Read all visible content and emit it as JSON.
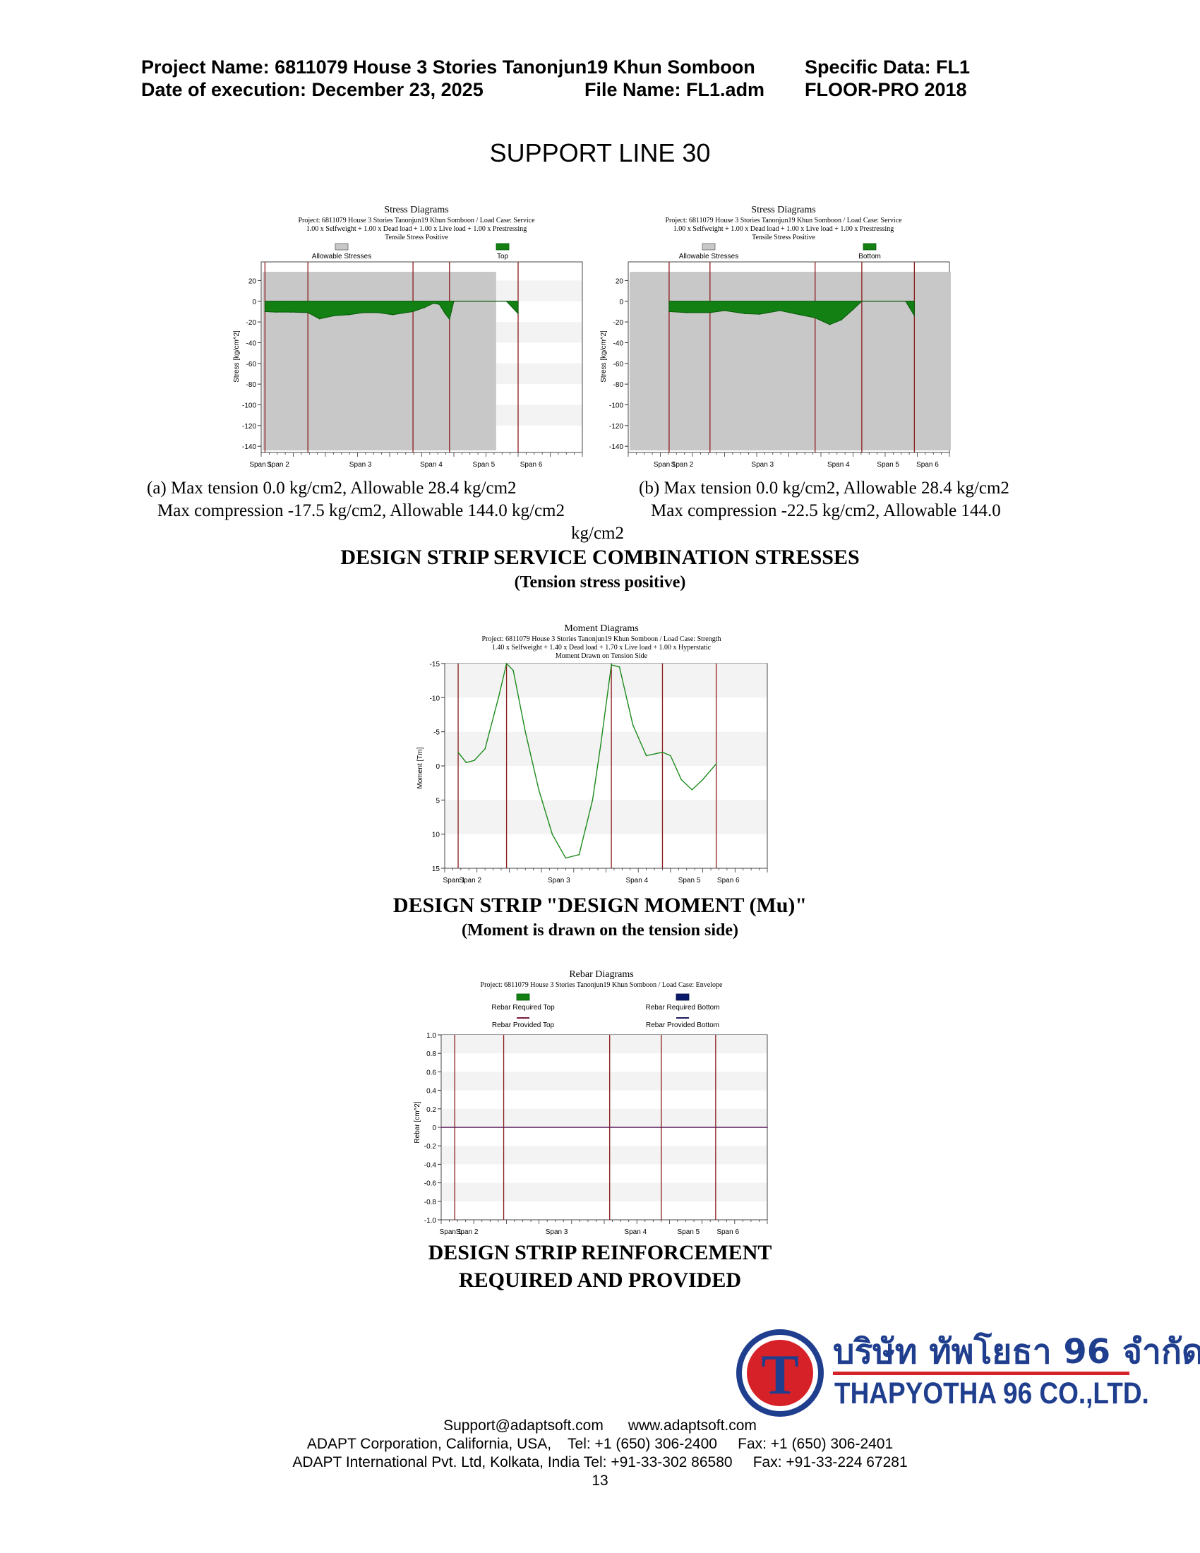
{
  "header": {
    "project": "Project Name: 6811079 House 3 Stories Tanonjun19 Khun Somboon",
    "specific": "Specific Data: FL1",
    "date": "Date of execution: December 23, 2025",
    "file": "File Name: FL1.adm",
    "software": "FLOOR-PRO 2018"
  },
  "page_title": "SUPPORT LINE 30",
  "stress_section": {
    "caption_a_line1": "(a) Max tension 0.0 kg/cm2, Allowable 28.4 kg/cm2",
    "caption_a_line2": "Max compression -17.5 kg/cm2, Allowable 144.0 kg/cm2",
    "caption_b_line1": "(b) Max tension 0.0 kg/cm2, Allowable 28.4 kg/cm2",
    "caption_b_line2": "Max compression -22.5 kg/cm2, Allowable 144.0",
    "caption_wrap": "kg/cm2",
    "heading": "DESIGN STRIP SERVICE COMBINATION STRESSES",
    "subheading": "(Tension stress positive)"
  },
  "moment_section": {
    "heading": "DESIGN STRIP \"DESIGN MOMENT (Mu)\"",
    "subheading": "(Moment is drawn on the tension side)"
  },
  "rebar_section": {
    "heading_line1": "DESIGN STRIP REINFORCEMENT",
    "heading_line2": "REQUIRED AND PROVIDED"
  },
  "chart_data": [
    {
      "type": "area",
      "title": "Stress Diagrams",
      "subtitle_1": "Project: 6811079 House 3 Stories Tanonjun19 Khun Somboon / Load Case: Service",
      "subtitle_2": "1.00 x Selfweight +  1.00 x Dead load +  1.00 x Live load +  1.00 x Prestressing",
      "subtitle_3": "Tensile Stress Positive",
      "legend": [
        "Allowable Stresses",
        "Top"
      ],
      "ylabel": "Stress [kg/cm^2]",
      "yticks": [
        "20",
        "0",
        "-20",
        "-40",
        "-60",
        "-80",
        "-100",
        "-120",
        "-140"
      ],
      "ylim": [
        -146,
        38
      ],
      "span_labels": [
        "Span 1",
        "Span 2",
        "Span 3",
        "Span 4",
        "Span 5",
        "Span 6"
      ],
      "supports": [
        0.13,
        1.6,
        5.2,
        6.45,
        8.8
      ],
      "allowable": {
        "x": [
          0.0,
          8.0
        ],
        "min": -144,
        "max": 28.4
      },
      "x": [
        0.13,
        0.5,
        1.0,
        1.6,
        2.0,
        2.5,
        3.0,
        3.5,
        4.0,
        4.5,
        5.2,
        5.6,
        5.9,
        6.1,
        6.3,
        6.45,
        6.6,
        8.0,
        8.4,
        8.8
      ],
      "values": [
        -10,
        -10.5,
        -10.5,
        -11,
        -17,
        -14,
        -13,
        -11,
        -11,
        -13,
        -10,
        -6,
        -2,
        -3,
        -12,
        -17.5,
        0,
        0,
        0,
        -12
      ]
    },
    {
      "type": "area",
      "title": "Stress Diagrams",
      "subtitle_1": "Project: 6811079 House 3 Stories Tanonjun19 Khun Somboon / Load Case: Service",
      "subtitle_2": "1.00 x Selfweight +  1.00 x Dead load +  1.00 x Live load +  1.00 x Prestressing",
      "subtitle_3": "Tensile Stress Positive",
      "legend": [
        "Allowable Stresses",
        "Bottom"
      ],
      "ylabel": "Stress [kg/cm^2]",
      "yticks": [
        "20",
        "0",
        "-20",
        "-40",
        "-60",
        "-80",
        "-100",
        "-120",
        "-140"
      ],
      "ylim": [
        -146,
        38
      ],
      "span_labels": [
        "Span 1",
        "Span 2",
        "Span 3",
        "Span 4",
        "Span 5",
        "Span 6"
      ],
      "supports": [
        1.4,
        2.8,
        6.4,
        8.0,
        9.8
      ],
      "allowable": {
        "x": [
          0.0,
          11.0
        ],
        "min": -144,
        "max": 28.4
      },
      "x": [
        1.4,
        2.0,
        2.8,
        3.3,
        4.0,
        4.5,
        5.2,
        5.7,
        6.4,
        6.9,
        7.3,
        7.7,
        8.0,
        9.5,
        9.8
      ],
      "values": [
        -10,
        -11,
        -11,
        -9,
        -12,
        -12.5,
        -9,
        -12,
        -16,
        -22.5,
        -18,
        -8,
        0,
        0,
        -14
      ]
    },
    {
      "type": "line",
      "title": "Moment Diagrams",
      "subtitle_1": "Project: 6811079 House 3 Stories Tanonjun19 Khun Somboon / Load Case: Strength",
      "subtitle_2": "1.40 x Selfweight +  1.40 x Dead load +  1.70 x Live load +  1.00 x Hyperstatic",
      "subtitle_3": "Moment Drawn on Tension Side",
      "ylabel": "Moment [Tm]",
      "yticks": [
        "-15",
        "-10",
        "-5",
        "0",
        "5",
        "10",
        "15"
      ],
      "ylim": [
        -15,
        15
      ],
      "y_inverted": true,
      "span_labels": [
        "Span 1",
        "Span 2",
        "Span 3",
        "Span 4",
        "Span 5",
        "Span 6"
      ],
      "supports": [
        0.5,
        2.3,
        6.2,
        8.1,
        10.1
      ],
      "x": [
        0.5,
        0.8,
        1.1,
        1.5,
        2.0,
        2.3,
        2.55,
        3.0,
        3.5,
        4.0,
        4.5,
        5.0,
        5.5,
        5.8,
        6.2,
        6.5,
        7.0,
        7.5,
        8.1,
        8.4,
        8.8,
        9.2,
        9.6,
        10.1
      ],
      "values": [
        -2.0,
        -0.5,
        -0.8,
        -2.5,
        -10,
        -15,
        -14,
        -5,
        3.5,
        10,
        13.5,
        13,
        5,
        -3,
        -14.8,
        -14.5,
        -6,
        -1.5,
        -2.0,
        -1.5,
        2.0,
        3.5,
        2.0,
        -0.3
      ],
      "line_color": "#1b8a1b"
    },
    {
      "type": "line",
      "title": "Rebar Diagrams",
      "subtitle_1": "Project: 6811079 House 3 Stories Tanonjun19 Khun Somboon / Load Case: Envelope",
      "legend": [
        "Rebar Required Top",
        "Rebar Required Bottom",
        "Rebar Provided Top",
        "Rebar Provided Bottom"
      ],
      "ylabel": "Rebar [cm^2]",
      "yticks": [
        "1.0",
        "0.8",
        "0.6",
        "0.4",
        "0.2",
        "0",
        "-0.2",
        "-0.4",
        "-0.6",
        "-0.8",
        "-1.0"
      ],
      "ylim": [
        -1.0,
        1.0
      ],
      "span_labels": [
        "Span 1",
        "Span 2",
        "Span 3",
        "Span 4",
        "Span 5",
        "Span 6"
      ],
      "supports": [
        0.5,
        2.3,
        6.2,
        8.1,
        10.1
      ],
      "x": [
        0,
        12
      ],
      "values": [
        0,
        0
      ]
    }
  ],
  "logo": {
    "letter": "T",
    "thai_name": "บริษัท ทัพโยธา 96 จำกัด",
    "english_name": "THAPYOTHA 96 CO.,LTD.",
    "navy": "#1f3e8e",
    "red": "#d62128"
  },
  "footer": {
    "line1": "Support@adaptsoft.com      www.adaptsoft.com",
    "line2": "ADAPT Corporation, California, USA,    Tel: +1 (650) 306-2400     Fax: +1 (650) 306-2401",
    "line3": "ADAPT International Pvt. Ltd, Kolkata, India Tel: +91-33-302 86580     Fax: +91-33-224 67281",
    "page_number": "13"
  },
  "colors": {
    "stress_fill": "#128012",
    "allowable_fill": "#c8c8c8",
    "support_line": "#8b1a1a"
  }
}
